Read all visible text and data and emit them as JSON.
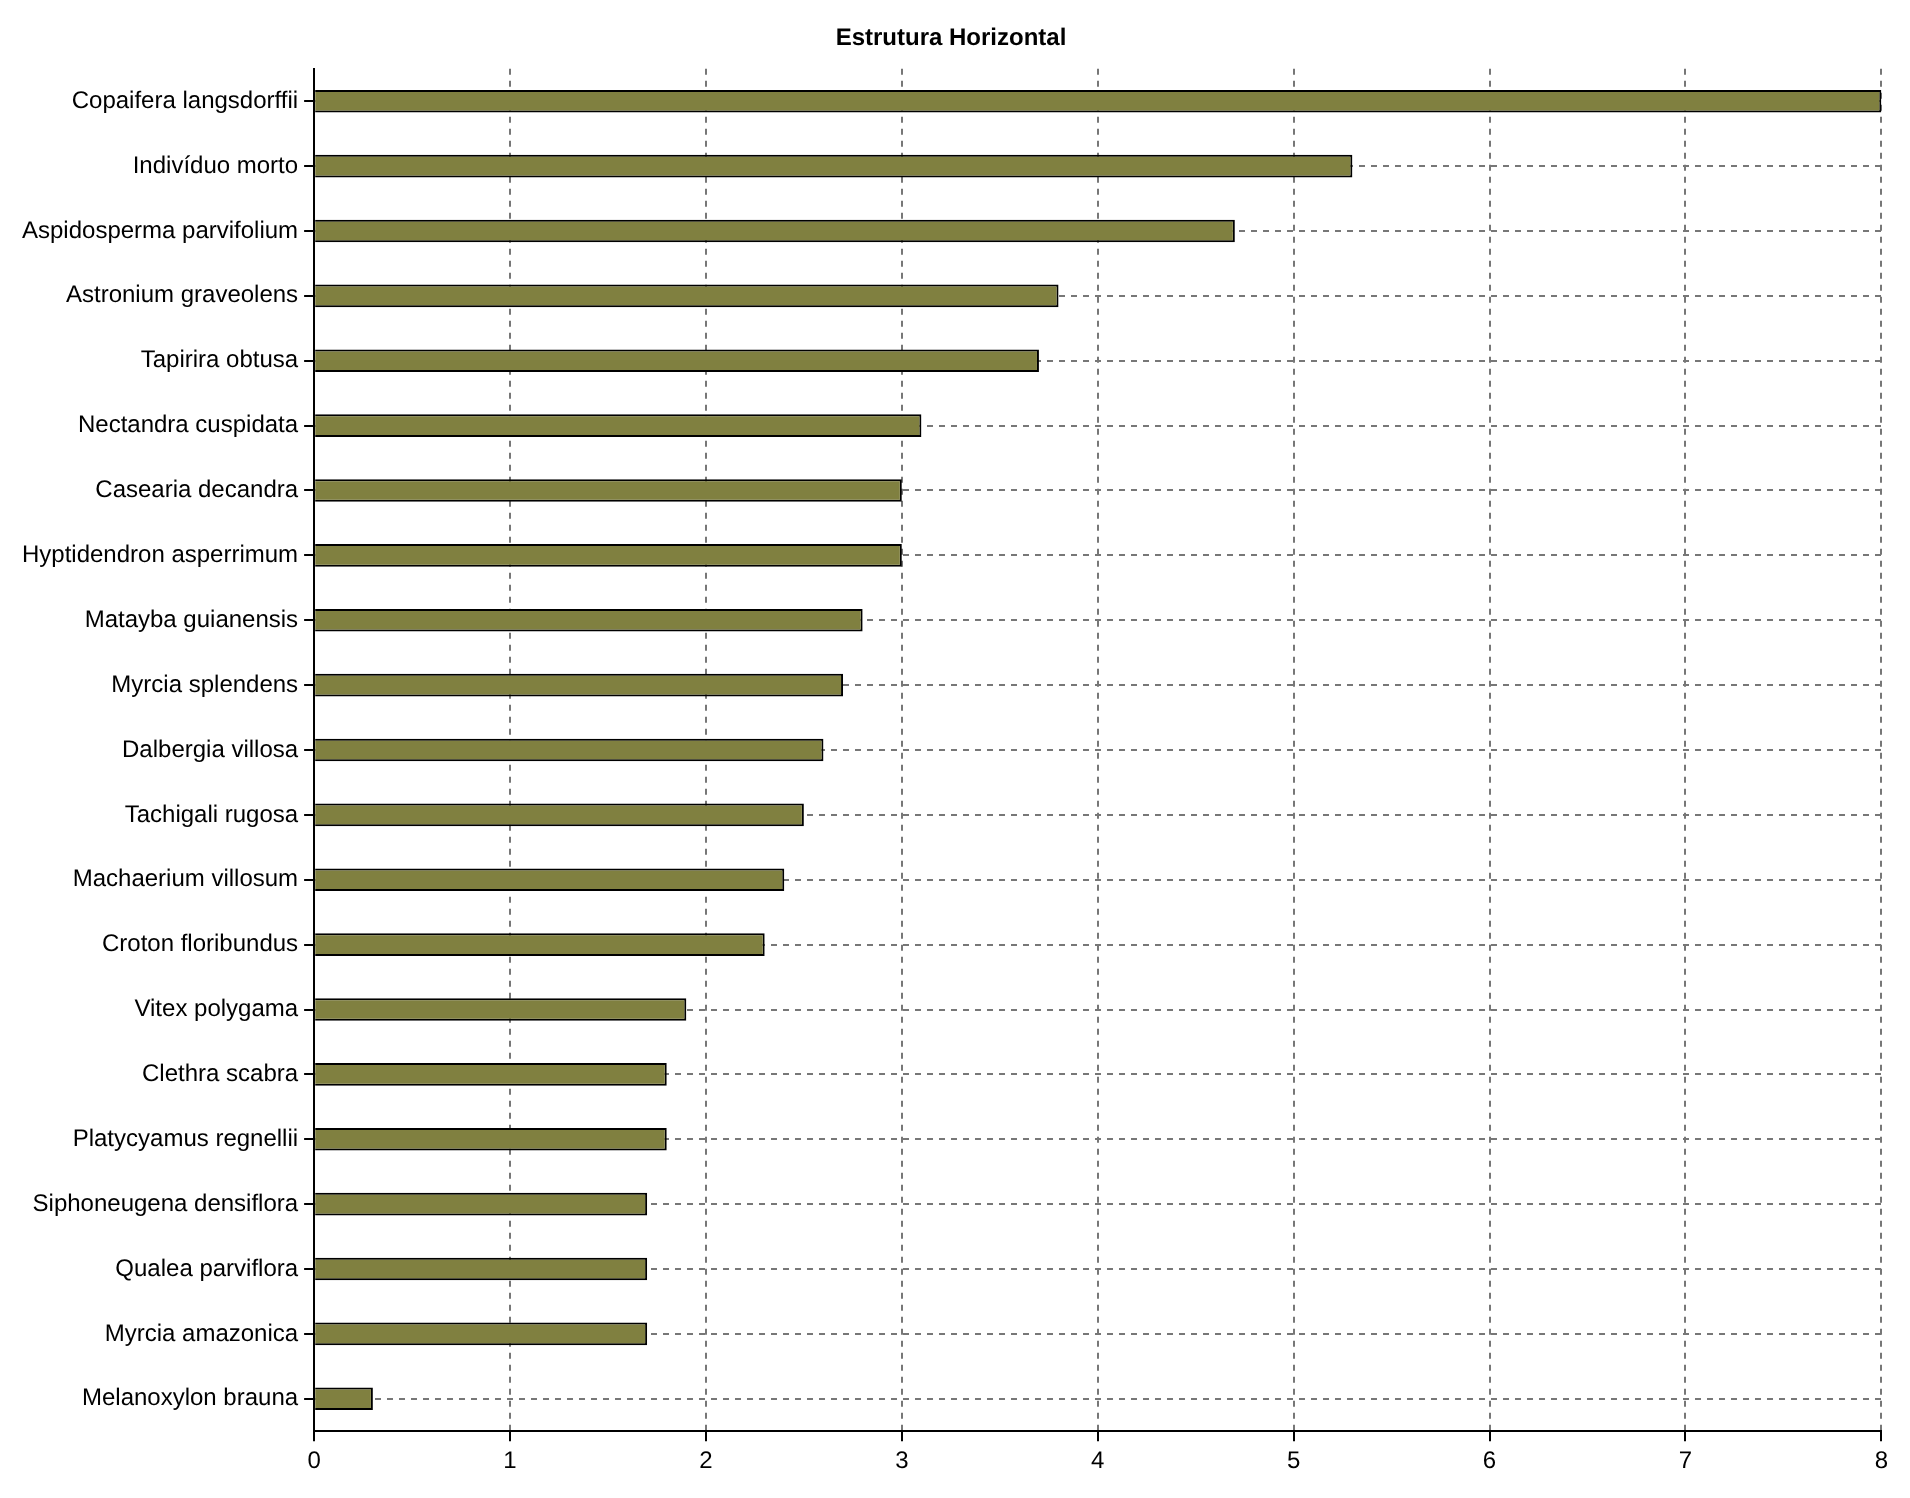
{
  "chart_data": {
    "type": "bar",
    "orientation": "horizontal",
    "title": "Estrutura Horizontal",
    "categories": [
      "Copaifera langsdorffii",
      "Indivíduo morto",
      "Aspidosperma parvifolium",
      "Astronium graveolens",
      "Tapirira obtusa",
      "Nectandra cuspidata",
      "Casearia decandra",
      "Hyptidendron asperrimum",
      "Matayba guianensis",
      "Myrcia splendens",
      "Dalbergia villosa",
      "Tachigali rugosa",
      "Machaerium villosum",
      "Croton floribundus",
      "Vitex polygama",
      "Clethra scabra",
      "Platycyamus regnellii",
      "Siphoneugena densiflora",
      "Qualea parviflora",
      "Myrcia amazonica",
      "Melanoxylon brauna"
    ],
    "values": [
      8.0,
      5.3,
      4.7,
      3.8,
      3.7,
      3.1,
      3.0,
      3.0,
      2.8,
      2.7,
      2.6,
      2.5,
      2.4,
      2.3,
      1.9,
      1.8,
      1.8,
      1.7,
      1.7,
      1.7,
      0.3
    ],
    "color": "#808040",
    "xlim": [
      0,
      8
    ],
    "xticks": [
      0,
      1,
      2,
      3,
      4,
      5,
      6,
      7,
      8
    ],
    "grid": true
  }
}
